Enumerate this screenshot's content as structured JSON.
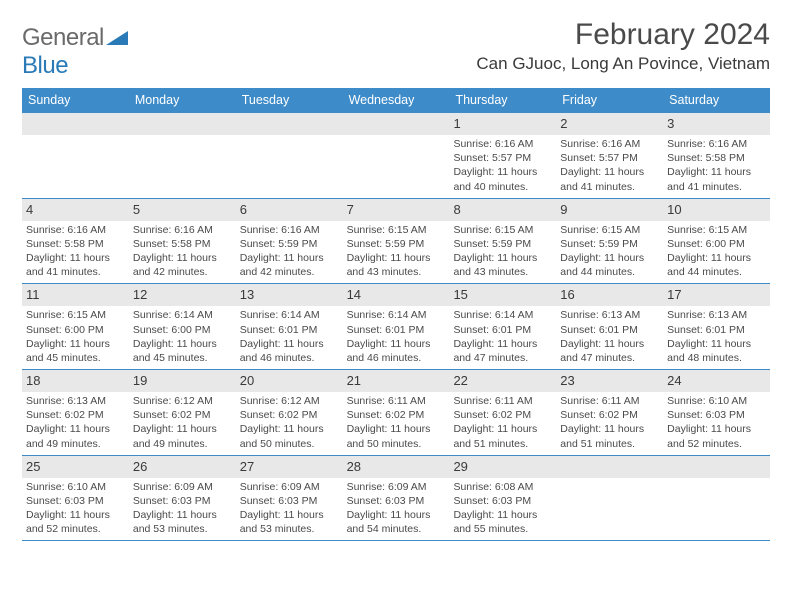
{
  "logo": {
    "word1": "General",
    "word2": "Blue"
  },
  "title": "February 2024",
  "location": "Can GJuoc, Long An Povince, Vietnam",
  "weekdays": [
    "Sunday",
    "Monday",
    "Tuesday",
    "Wednesday",
    "Thursday",
    "Friday",
    "Saturday"
  ],
  "colors": {
    "header_bar": "#3d8bc8",
    "daynum_bg": "#e8e8e8",
    "rule": "#3d8bc8",
    "text": "#4a4a4a",
    "logo_blue": "#2a7ab8"
  },
  "typography": {
    "title_fontsize": 30,
    "location_fontsize": 17,
    "weekday_fontsize": 12.5,
    "daynum_fontsize": 13,
    "body_fontsize": 10.5
  },
  "weeks": [
    [
      {
        "n": "",
        "sr": "",
        "ss": "",
        "dl1": "",
        "dl2": ""
      },
      {
        "n": "",
        "sr": "",
        "ss": "",
        "dl1": "",
        "dl2": ""
      },
      {
        "n": "",
        "sr": "",
        "ss": "",
        "dl1": "",
        "dl2": ""
      },
      {
        "n": "",
        "sr": "",
        "ss": "",
        "dl1": "",
        "dl2": ""
      },
      {
        "n": "1",
        "sr": "Sunrise: 6:16 AM",
        "ss": "Sunset: 5:57 PM",
        "dl1": "Daylight: 11 hours",
        "dl2": "and 40 minutes."
      },
      {
        "n": "2",
        "sr": "Sunrise: 6:16 AM",
        "ss": "Sunset: 5:57 PM",
        "dl1": "Daylight: 11 hours",
        "dl2": "and 41 minutes."
      },
      {
        "n": "3",
        "sr": "Sunrise: 6:16 AM",
        "ss": "Sunset: 5:58 PM",
        "dl1": "Daylight: 11 hours",
        "dl2": "and 41 minutes."
      }
    ],
    [
      {
        "n": "4",
        "sr": "Sunrise: 6:16 AM",
        "ss": "Sunset: 5:58 PM",
        "dl1": "Daylight: 11 hours",
        "dl2": "and 41 minutes."
      },
      {
        "n": "5",
        "sr": "Sunrise: 6:16 AM",
        "ss": "Sunset: 5:58 PM",
        "dl1": "Daylight: 11 hours",
        "dl2": "and 42 minutes."
      },
      {
        "n": "6",
        "sr": "Sunrise: 6:16 AM",
        "ss": "Sunset: 5:59 PM",
        "dl1": "Daylight: 11 hours",
        "dl2": "and 42 minutes."
      },
      {
        "n": "7",
        "sr": "Sunrise: 6:15 AM",
        "ss": "Sunset: 5:59 PM",
        "dl1": "Daylight: 11 hours",
        "dl2": "and 43 minutes."
      },
      {
        "n": "8",
        "sr": "Sunrise: 6:15 AM",
        "ss": "Sunset: 5:59 PM",
        "dl1": "Daylight: 11 hours",
        "dl2": "and 43 minutes."
      },
      {
        "n": "9",
        "sr": "Sunrise: 6:15 AM",
        "ss": "Sunset: 5:59 PM",
        "dl1": "Daylight: 11 hours",
        "dl2": "and 44 minutes."
      },
      {
        "n": "10",
        "sr": "Sunrise: 6:15 AM",
        "ss": "Sunset: 6:00 PM",
        "dl1": "Daylight: 11 hours",
        "dl2": "and 44 minutes."
      }
    ],
    [
      {
        "n": "11",
        "sr": "Sunrise: 6:15 AM",
        "ss": "Sunset: 6:00 PM",
        "dl1": "Daylight: 11 hours",
        "dl2": "and 45 minutes."
      },
      {
        "n": "12",
        "sr": "Sunrise: 6:14 AM",
        "ss": "Sunset: 6:00 PM",
        "dl1": "Daylight: 11 hours",
        "dl2": "and 45 minutes."
      },
      {
        "n": "13",
        "sr": "Sunrise: 6:14 AM",
        "ss": "Sunset: 6:01 PM",
        "dl1": "Daylight: 11 hours",
        "dl2": "and 46 minutes."
      },
      {
        "n": "14",
        "sr": "Sunrise: 6:14 AM",
        "ss": "Sunset: 6:01 PM",
        "dl1": "Daylight: 11 hours",
        "dl2": "and 46 minutes."
      },
      {
        "n": "15",
        "sr": "Sunrise: 6:14 AM",
        "ss": "Sunset: 6:01 PM",
        "dl1": "Daylight: 11 hours",
        "dl2": "and 47 minutes."
      },
      {
        "n": "16",
        "sr": "Sunrise: 6:13 AM",
        "ss": "Sunset: 6:01 PM",
        "dl1": "Daylight: 11 hours",
        "dl2": "and 47 minutes."
      },
      {
        "n": "17",
        "sr": "Sunrise: 6:13 AM",
        "ss": "Sunset: 6:01 PM",
        "dl1": "Daylight: 11 hours",
        "dl2": "and 48 minutes."
      }
    ],
    [
      {
        "n": "18",
        "sr": "Sunrise: 6:13 AM",
        "ss": "Sunset: 6:02 PM",
        "dl1": "Daylight: 11 hours",
        "dl2": "and 49 minutes."
      },
      {
        "n": "19",
        "sr": "Sunrise: 6:12 AM",
        "ss": "Sunset: 6:02 PM",
        "dl1": "Daylight: 11 hours",
        "dl2": "and 49 minutes."
      },
      {
        "n": "20",
        "sr": "Sunrise: 6:12 AM",
        "ss": "Sunset: 6:02 PM",
        "dl1": "Daylight: 11 hours",
        "dl2": "and 50 minutes."
      },
      {
        "n": "21",
        "sr": "Sunrise: 6:11 AM",
        "ss": "Sunset: 6:02 PM",
        "dl1": "Daylight: 11 hours",
        "dl2": "and 50 minutes."
      },
      {
        "n": "22",
        "sr": "Sunrise: 6:11 AM",
        "ss": "Sunset: 6:02 PM",
        "dl1": "Daylight: 11 hours",
        "dl2": "and 51 minutes."
      },
      {
        "n": "23",
        "sr": "Sunrise: 6:11 AM",
        "ss": "Sunset: 6:02 PM",
        "dl1": "Daylight: 11 hours",
        "dl2": "and 51 minutes."
      },
      {
        "n": "24",
        "sr": "Sunrise: 6:10 AM",
        "ss": "Sunset: 6:03 PM",
        "dl1": "Daylight: 11 hours",
        "dl2": "and 52 minutes."
      }
    ],
    [
      {
        "n": "25",
        "sr": "Sunrise: 6:10 AM",
        "ss": "Sunset: 6:03 PM",
        "dl1": "Daylight: 11 hours",
        "dl2": "and 52 minutes."
      },
      {
        "n": "26",
        "sr": "Sunrise: 6:09 AM",
        "ss": "Sunset: 6:03 PM",
        "dl1": "Daylight: 11 hours",
        "dl2": "and 53 minutes."
      },
      {
        "n": "27",
        "sr": "Sunrise: 6:09 AM",
        "ss": "Sunset: 6:03 PM",
        "dl1": "Daylight: 11 hours",
        "dl2": "and 53 minutes."
      },
      {
        "n": "28",
        "sr": "Sunrise: 6:09 AM",
        "ss": "Sunset: 6:03 PM",
        "dl1": "Daylight: 11 hours",
        "dl2": "and 54 minutes."
      },
      {
        "n": "29",
        "sr": "Sunrise: 6:08 AM",
        "ss": "Sunset: 6:03 PM",
        "dl1": "Daylight: 11 hours",
        "dl2": "and 55 minutes."
      },
      {
        "n": "",
        "sr": "",
        "ss": "",
        "dl1": "",
        "dl2": ""
      },
      {
        "n": "",
        "sr": "",
        "ss": "",
        "dl1": "",
        "dl2": ""
      }
    ]
  ]
}
